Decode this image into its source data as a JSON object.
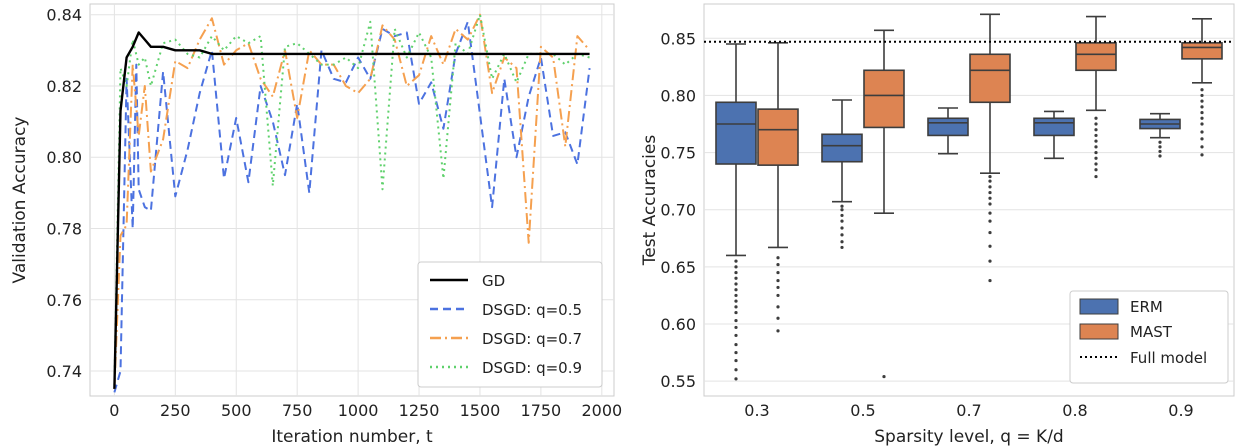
{
  "chart_data": [
    {
      "type": "line",
      "xlabel": "Iteration number,  t",
      "ylabel": "Validation Accuracy",
      "xlim": [
        -100,
        2050
      ],
      "ylim": [
        0.733,
        0.843
      ],
      "xticks": [
        0,
        250,
        500,
        750,
        1000,
        1250,
        1500,
        1750,
        2000
      ],
      "yticks": [
        0.74,
        0.76,
        0.78,
        0.8,
        0.82,
        0.84
      ],
      "grid": true,
      "legend_position": "bottom-right",
      "series": [
        {
          "name": "GD",
          "color": "#000000",
          "style": "solid",
          "x": [
            0,
            25,
            50,
            75,
            100,
            125,
            150,
            200,
            250,
            300,
            350,
            400,
            500,
            750,
            1000,
            1250,
            1500,
            1750,
            1950
          ],
          "y": [
            0.735,
            0.813,
            0.828,
            0.831,
            0.835,
            0.833,
            0.831,
            0.831,
            0.83,
            0.83,
            0.83,
            0.829,
            0.829,
            0.829,
            0.829,
            0.829,
            0.829,
            0.829,
            0.829
          ]
        },
        {
          "name": "DSGD: q=0.5",
          "color": "#4c72e0",
          "style": "dashed",
          "x": [
            0,
            25,
            50,
            75,
            90,
            100,
            125,
            150,
            200,
            250,
            300,
            350,
            400,
            450,
            500,
            550,
            600,
            650,
            700,
            750,
            800,
            850,
            900,
            950,
            1000,
            1050,
            1100,
            1150,
            1200,
            1250,
            1300,
            1350,
            1400,
            1450,
            1500,
            1550,
            1600,
            1650,
            1700,
            1750,
            1800,
            1850,
            1900,
            1950
          ],
          "y": [
            0.734,
            0.74,
            0.822,
            0.78,
            0.826,
            0.791,
            0.786,
            0.785,
            0.824,
            0.789,
            0.802,
            0.818,
            0.83,
            0.794,
            0.811,
            0.793,
            0.82,
            0.81,
            0.795,
            0.815,
            0.79,
            0.83,
            0.822,
            0.821,
            0.828,
            0.822,
            0.836,
            0.834,
            0.835,
            0.815,
            0.821,
            0.808,
            0.829,
            0.838,
            0.812,
            0.786,
            0.822,
            0.8,
            0.817,
            0.828,
            0.806,
            0.807,
            0.798,
            0.825
          ]
        },
        {
          "name": "DSGD: q=0.7",
          "color": "#f5a04f",
          "style": "dashdot",
          "x": [
            0,
            25,
            50,
            75,
            100,
            125,
            150,
            200,
            250,
            300,
            350,
            400,
            450,
            500,
            550,
            600,
            650,
            700,
            750,
            800,
            850,
            900,
            950,
            1000,
            1050,
            1100,
            1150,
            1200,
            1250,
            1300,
            1350,
            1400,
            1450,
            1500,
            1550,
            1600,
            1650,
            1700,
            1750,
            1800,
            1850,
            1900,
            1950
          ],
          "y": [
            0.735,
            0.778,
            0.781,
            0.826,
            0.806,
            0.82,
            0.796,
            0.805,
            0.827,
            0.825,
            0.833,
            0.839,
            0.826,
            0.83,
            0.832,
            0.822,
            0.817,
            0.83,
            0.811,
            0.83,
            0.826,
            0.826,
            0.82,
            0.818,
            0.822,
            0.837,
            0.833,
            0.82,
            0.823,
            0.834,
            0.826,
            0.836,
            0.833,
            0.84,
            0.818,
            0.828,
            0.825,
            0.776,
            0.831,
            0.828,
            0.803,
            0.834,
            0.83
          ]
        },
        {
          "name": "DSGD: q=0.9",
          "color": "#5fd16c",
          "style": "dotted",
          "x": [
            0,
            25,
            50,
            75,
            100,
            125,
            150,
            200,
            250,
            300,
            350,
            400,
            450,
            500,
            550,
            600,
            650,
            700,
            750,
            800,
            850,
            900,
            950,
            1000,
            1050,
            1100,
            1150,
            1200,
            1250,
            1300,
            1350,
            1400,
            1450,
            1500,
            1550,
            1600,
            1650,
            1700,
            1750,
            1800,
            1850,
            1900,
            1950
          ],
          "y": [
            0.736,
            0.825,
            0.82,
            0.833,
            0.826,
            0.828,
            0.82,
            0.832,
            0.833,
            0.829,
            0.828,
            0.834,
            0.83,
            0.834,
            0.832,
            0.834,
            0.792,
            0.831,
            0.832,
            0.829,
            0.826,
            0.826,
            0.828,
            0.825,
            0.838,
            0.791,
            0.836,
            0.828,
            0.835,
            0.828,
            0.794,
            0.832,
            0.829,
            0.84,
            0.822,
            0.829,
            0.821,
            0.829,
            0.829,
            0.829,
            0.826,
            0.829,
            0.828
          ]
        }
      ]
    },
    {
      "type": "boxplot",
      "xlabel": "Sparsity level,  q = K/d",
      "ylabel": "Test Accuracies",
      "categories": [
        "0.3",
        "0.5",
        "0.7",
        "0.8",
        "0.9"
      ],
      "ylim": [
        0.537,
        0.88
      ],
      "yticks": [
        0.55,
        0.6,
        0.65,
        0.7,
        0.75,
        0.8,
        0.85
      ],
      "grid": true,
      "legend_position": "bottom-right",
      "reference_line": {
        "name": "Full model",
        "value": 0.847,
        "style": "dotted",
        "color": "#000000"
      },
      "series": [
        {
          "name": "ERM",
          "color": "#4c72b0",
          "boxes": [
            {
              "whislo": 0.66,
              "q1": 0.74,
              "med": 0.775,
              "q3": 0.794,
              "whishi": 0.845,
              "fliers": [
                0.552,
                0.56,
                0.568,
                0.575,
                0.582,
                0.59,
                0.597,
                0.603,
                0.61,
                0.615,
                0.62,
                0.625,
                0.63,
                0.635,
                0.64,
                0.645,
                0.65,
                0.655
              ]
            },
            {
              "whislo": 0.707,
              "q1": 0.742,
              "med": 0.756,
              "q3": 0.766,
              "whishi": 0.796,
              "fliers": [
                0.667,
                0.672,
                0.678,
                0.684,
                0.69,
                0.695,
                0.7,
                0.703
              ]
            },
            {
              "whislo": 0.749,
              "q1": 0.765,
              "med": 0.776,
              "q3": 0.78,
              "whishi": 0.789,
              "fliers": []
            },
            {
              "whislo": 0.745,
              "q1": 0.765,
              "med": 0.776,
              "q3": 0.78,
              "whishi": 0.786,
              "fliers": []
            },
            {
              "whislo": 0.763,
              "q1": 0.771,
              "med": 0.775,
              "q3": 0.779,
              "whishi": 0.784,
              "fliers": [
                0.747,
                0.751,
                0.755,
                0.759
              ]
            }
          ]
        },
        {
          "name": "MAST",
          "color": "#dd8452",
          "boxes": [
            {
              "whislo": 0.667,
              "q1": 0.739,
              "med": 0.77,
              "q3": 0.788,
              "whishi": 0.846,
              "fliers": [
                0.594,
                0.605,
                0.615,
                0.625,
                0.632,
                0.638,
                0.645,
                0.652,
                0.658
              ]
            },
            {
              "whislo": 0.697,
              "q1": 0.772,
              "med": 0.8,
              "q3": 0.822,
              "whishi": 0.857,
              "fliers": [
                0.554
              ]
            },
            {
              "whislo": 0.732,
              "q1": 0.794,
              "med": 0.822,
              "q3": 0.836,
              "whishi": 0.871,
              "fliers": [
                0.638,
                0.655,
                0.668,
                0.68,
                0.69,
                0.697,
                0.705,
                0.71,
                0.715,
                0.72,
                0.725,
                0.729
              ]
            },
            {
              "whislo": 0.787,
              "q1": 0.822,
              "med": 0.836,
              "q3": 0.846,
              "whishi": 0.869,
              "fliers": [
                0.729,
                0.735,
                0.74,
                0.745,
                0.75,
                0.755,
                0.76,
                0.765,
                0.77,
                0.775,
                0.78
              ]
            },
            {
              "whislo": 0.811,
              "q1": 0.832,
              "med": 0.842,
              "q3": 0.846,
              "whishi": 0.867,
              "fliers": [
                0.748,
                0.755,
                0.762,
                0.768,
                0.775,
                0.78,
                0.785,
                0.79,
                0.795,
                0.8,
                0.805
              ]
            }
          ]
        }
      ]
    }
  ]
}
